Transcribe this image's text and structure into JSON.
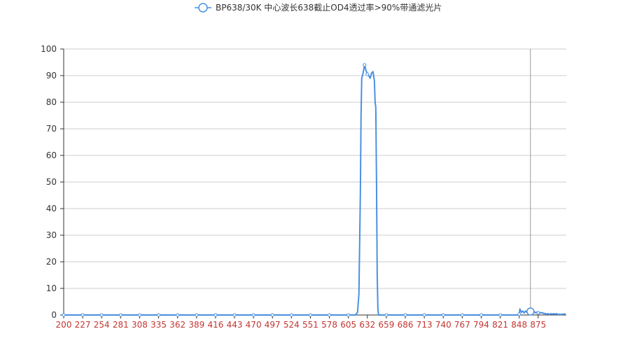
{
  "colors": {
    "series": "#4a90e2",
    "x_tick_text": "#c23531",
    "y_tick_text": "#333333",
    "grid": "#cccccc",
    "axis": "#333333",
    "crosshair": "#999999"
  },
  "legend": {
    "icon": "circle-line-icon",
    "label": "BP638/30K 中心波长638截止OD4透过率>90%带通滤光片"
  },
  "chart_data": {
    "type": "line",
    "title": "",
    "xlabel": "",
    "ylabel": "",
    "ylim": [
      0,
      100
    ],
    "y_ticks": [
      0,
      10,
      20,
      30,
      40,
      50,
      60,
      70,
      80,
      90,
      100
    ],
    "x_tick_labels": [
      "200",
      "227",
      "254",
      "281",
      "308",
      "335",
      "362",
      "389",
      "416",
      "443",
      "470",
      "497",
      "524",
      "551",
      "578",
      "605",
      "632",
      "659",
      "686",
      "713",
      "740",
      "767",
      "794",
      "821",
      "848",
      "875"
    ],
    "xlim": [
      200,
      915
    ],
    "grid": true,
    "legend_position": "top-center",
    "hover": {
      "x": 864,
      "y": 1.3
    },
    "series": [
      {
        "name": "BP638/30K 中心波长638截止OD4透过率>90%带通滤光片",
        "points": [
          [
            200,
            0
          ],
          [
            227,
            0
          ],
          [
            254,
            0
          ],
          [
            281,
            0
          ],
          [
            308,
            0
          ],
          [
            335,
            0
          ],
          [
            362,
            0
          ],
          [
            389,
            0
          ],
          [
            416,
            0
          ],
          [
            443,
            0
          ],
          [
            470,
            0
          ],
          [
            497,
            0
          ],
          [
            524,
            0
          ],
          [
            551,
            0
          ],
          [
            578,
            0
          ],
          [
            605,
            0
          ],
          [
            615,
            0
          ],
          [
            618,
            1
          ],
          [
            620,
            8
          ],
          [
            622,
            45
          ],
          [
            623,
            75
          ],
          [
            624,
            89
          ],
          [
            626,
            91
          ],
          [
            628,
            94
          ],
          [
            630,
            92
          ],
          [
            632,
            90.5
          ],
          [
            634,
            90
          ],
          [
            636,
            89
          ],
          [
            638,
            91
          ],
          [
            640,
            91.5
          ],
          [
            642,
            88
          ],
          [
            643,
            80
          ],
          [
            644,
            78
          ],
          [
            645,
            50
          ],
          [
            646,
            15
          ],
          [
            647,
            2
          ],
          [
            648,
            0
          ],
          [
            652,
            0
          ],
          [
            659,
            0
          ],
          [
            686,
            0
          ],
          [
            713,
            0
          ],
          [
            740,
            0
          ],
          [
            767,
            0
          ],
          [
            794,
            0
          ],
          [
            821,
            0
          ],
          [
            846,
            0
          ],
          [
            848,
            0.3
          ],
          [
            849,
            2.3
          ],
          [
            851,
            1
          ],
          [
            853,
            1.5
          ],
          [
            855,
            0.8
          ],
          [
            857,
            1.5
          ],
          [
            859,
            1
          ],
          [
            861,
            1.4
          ],
          [
            864,
            1.3
          ],
          [
            867,
            1.1
          ],
          [
            869,
            1.4
          ],
          [
            871,
            0.8
          ],
          [
            873,
            1.1
          ],
          [
            875,
            0.8
          ],
          [
            877,
            1
          ],
          [
            879,
            0.7
          ],
          [
            881,
            0.9
          ],
          [
            883,
            0.5
          ],
          [
            885,
            0.6
          ],
          [
            887,
            0.3
          ],
          [
            889,
            0.5
          ],
          [
            891,
            0.2
          ],
          [
            893,
            0.5
          ],
          [
            895,
            0.3
          ],
          [
            897,
            0.5
          ],
          [
            899,
            0.3
          ],
          [
            901,
            0.5
          ],
          [
            903,
            0.2
          ],
          [
            905,
            0.3
          ],
          [
            907,
            0.2
          ],
          [
            909,
            0.3
          ],
          [
            911,
            0.3
          ],
          [
            913,
            0.4
          ]
        ]
      }
    ]
  }
}
